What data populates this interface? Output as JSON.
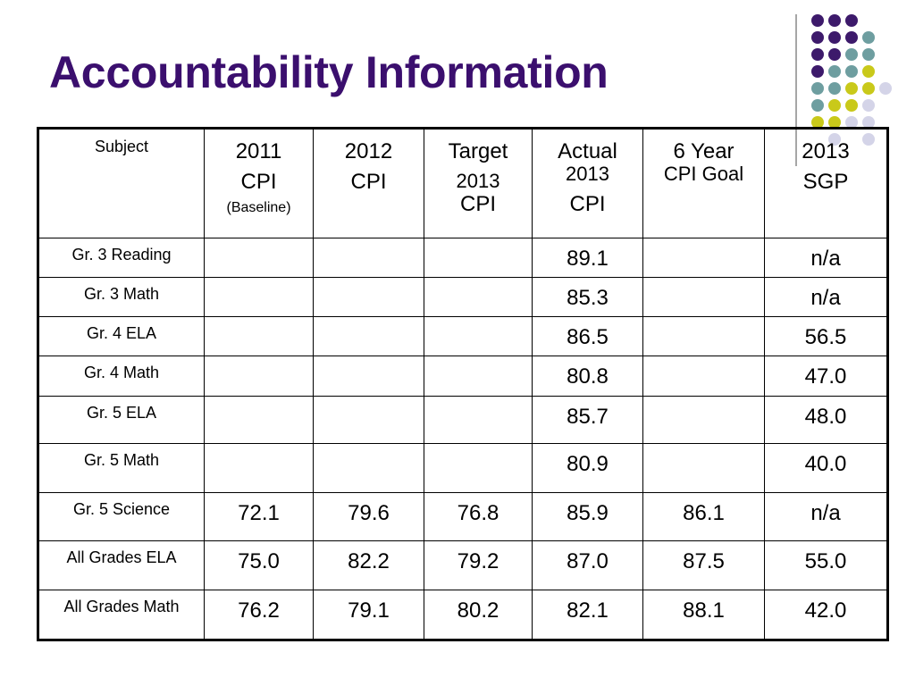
{
  "page": {
    "title": "Accountability Information"
  },
  "table": {
    "headers": {
      "subject": "Subject",
      "cpi2011": {
        "year": "2011",
        "label": "CPI",
        "note": "(Baseline)"
      },
      "cpi2012": {
        "year": "2012",
        "label": "CPI"
      },
      "target": {
        "label": "Target",
        "year": "2013",
        "unit": "CPI"
      },
      "actual": {
        "label": "Actual",
        "year": "2013",
        "unit": "CPI"
      },
      "goal": {
        "line1": "6 Year",
        "line2": "CPI Goal"
      },
      "sgp": {
        "year": "2013",
        "label": "SGP"
      }
    },
    "rows": [
      {
        "subject": "Gr. 3 Reading",
        "cpi2011": "",
        "cpi2012": "",
        "target": "",
        "actual": "89.1",
        "goal": "",
        "sgp": "n/a"
      },
      {
        "subject": "Gr. 3 Math",
        "cpi2011": "",
        "cpi2012": "",
        "target": "",
        "actual": "85.3",
        "goal": "",
        "sgp": "n/a"
      },
      {
        "subject": "Gr. 4 ELA",
        "cpi2011": "",
        "cpi2012": "",
        "target": "",
        "actual": "86.5",
        "goal": "",
        "sgp": "56.5"
      },
      {
        "subject": "Gr. 4 Math",
        "cpi2011": "",
        "cpi2012": "",
        "target": "",
        "actual": "80.8",
        "goal": "",
        "sgp": "47.0"
      },
      {
        "subject": "Gr. 5 ELA",
        "cpi2011": "",
        "cpi2012": "",
        "target": "",
        "actual": "85.7",
        "goal": "",
        "sgp": "48.0"
      },
      {
        "subject": "Gr. 5 Math",
        "cpi2011": "",
        "cpi2012": "",
        "target": "",
        "actual": "80.9",
        "goal": "",
        "sgp": "40.0"
      },
      {
        "subject": "Gr. 5 Science",
        "cpi2011": "72.1",
        "cpi2012": "79.6",
        "target": "76.8",
        "actual": "85.9",
        "goal": "86.1",
        "sgp": "n/a"
      },
      {
        "subject": "All Grades ELA",
        "cpi2011": "75.0",
        "cpi2012": "82.2",
        "target": "79.2",
        "actual": "87.0",
        "goal": "87.5",
        "sgp": "55.0"
      },
      {
        "subject": "All Grades Math",
        "cpi2011": "76.2",
        "cpi2012": "79.1",
        "target": "80.2",
        "actual": "82.1",
        "goal": "88.1",
        "sgp": "42.0"
      }
    ]
  },
  "decoration": {
    "colors": {
      "purple": "#3d1a6b",
      "teal": "#6e9ea0",
      "olive": "#c9c91a",
      "lavender": "#d4d4e8",
      "title": "#3b0f6e",
      "divider": "#a6a6a6"
    },
    "dot_grid": [
      [
        "purple",
        "purple",
        "purple",
        "",
        ""
      ],
      [
        "purple",
        "purple",
        "purple",
        "teal",
        ""
      ],
      [
        "purple",
        "purple",
        "teal",
        "teal",
        ""
      ],
      [
        "purple",
        "teal",
        "teal",
        "olive",
        ""
      ],
      [
        "teal",
        "teal",
        "olive",
        "olive",
        "lavender"
      ],
      [
        "teal",
        "olive",
        "olive",
        "lavender",
        ""
      ],
      [
        "olive",
        "olive",
        "lavender",
        "lavender",
        ""
      ],
      [
        "",
        "lavender",
        "",
        "lavender",
        ""
      ]
    ]
  }
}
